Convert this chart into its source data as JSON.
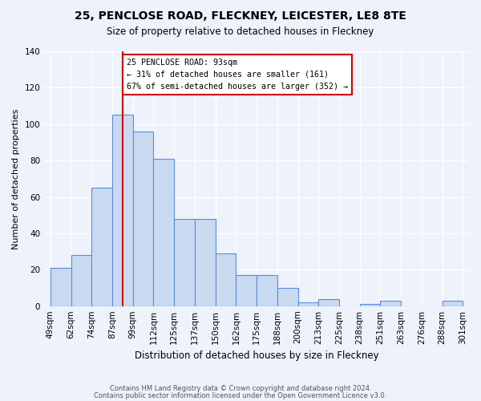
{
  "title1": "25, PENCLOSE ROAD, FLECKNEY, LEICESTER, LE8 8TE",
  "title2": "Size of property relative to detached houses in Fleckney",
  "xlabel": "Distribution of detached houses by size in Fleckney",
  "ylabel": "Number of detached properties",
  "categories": [
    "49sqm",
    "62sqm",
    "74sqm",
    "87sqm",
    "99sqm",
    "112sqm",
    "125sqm",
    "137sqm",
    "150sqm",
    "162sqm",
    "175sqm",
    "188sqm",
    "200sqm",
    "213sqm",
    "225sqm",
    "238sqm",
    "251sqm",
    "263sqm",
    "276sqm",
    "288sqm",
    "301sqm"
  ],
  "heights": [
    21,
    28,
    65,
    105,
    96,
    81,
    48,
    48,
    29,
    17,
    17,
    10,
    2,
    4,
    0,
    1,
    3,
    0,
    0,
    3
  ],
  "bar_color": "#c9d9f0",
  "bar_edge_color": "#5b8dd9",
  "annotation_text": "25 PENCLOSE ROAD: 93sqm\n← 31% of detached houses are smaller (161)\n67% of semi-detached houses are larger (352) →",
  "vline_color": "#cc0000",
  "annotation_box_color": "#ffffff",
  "ylim": [
    0,
    140
  ],
  "yticks": [
    0,
    20,
    40,
    60,
    80,
    100,
    120,
    140
  ],
  "footer1": "Contains HM Land Registry data © Crown copyright and database right 2024.",
  "footer2": "Contains public sector information licensed under the Open Government Licence v3.0.",
  "background_color": "#edf2fb",
  "plot_background": "#edf2fb"
}
